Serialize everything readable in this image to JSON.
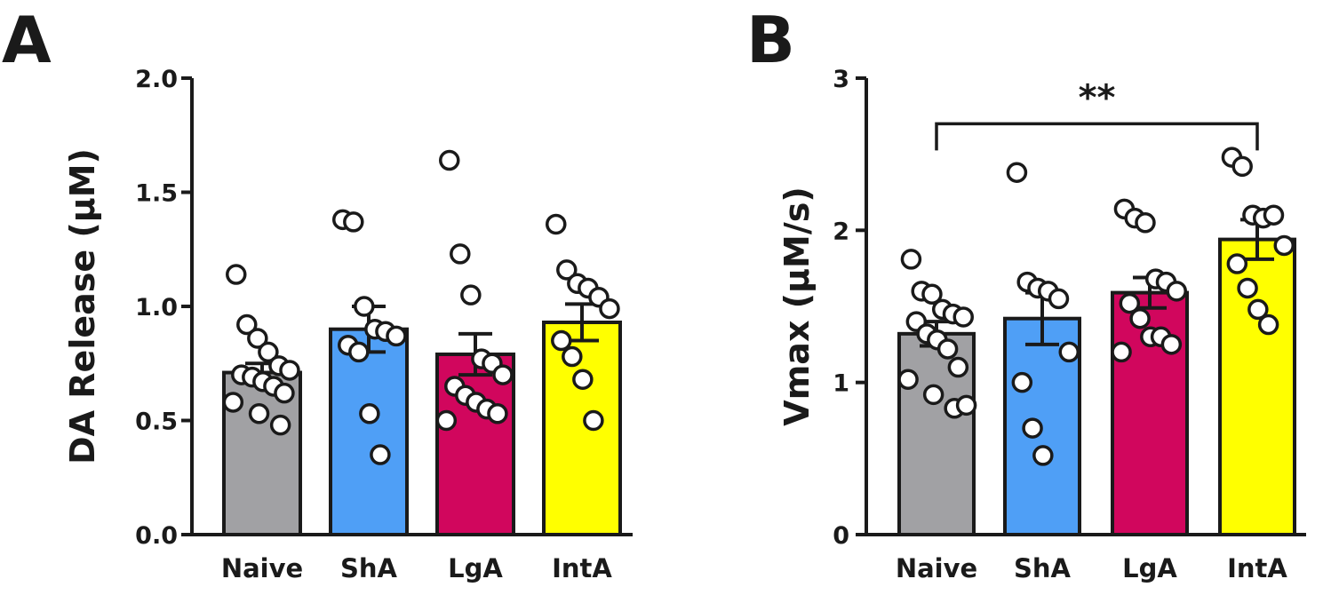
{
  "chart_data": [
    {
      "panel": "A",
      "type": "bar",
      "title": "",
      "xlabel": "",
      "ylabel": "DA Release (µM)",
      "ylim": [
        0,
        2.0
      ],
      "yticks": [
        0.0,
        0.5,
        1.0,
        1.5,
        2.0
      ],
      "ytick_labels": [
        "0.0",
        "0.5",
        "1.0",
        "1.5",
        "2.0"
      ],
      "categories": [
        "Naive",
        "ShA",
        "LgA",
        "IntA"
      ],
      "colors": [
        "#a1a1a4",
        "#4f9ff6",
        "#d1065d",
        "#ffff00"
      ],
      "values": [
        0.71,
        0.9,
        0.79,
        0.93
      ],
      "sem": [
        0.04,
        0.1,
        0.09,
        0.08
      ],
      "points": [
        [
          1.14,
          0.92,
          0.86,
          0.8,
          0.74,
          0.72,
          0.7,
          0.69,
          0.67,
          0.65,
          0.62,
          0.58,
          0.53,
          0.48
        ],
        [
          1.38,
          1.37,
          1.0,
          0.9,
          0.89,
          0.87,
          0.83,
          0.8,
          0.53,
          0.35
        ],
        [
          1.64,
          1.23,
          1.05,
          0.77,
          0.75,
          0.7,
          0.65,
          0.61,
          0.58,
          0.55,
          0.53,
          0.5
        ],
        [
          1.36,
          1.16,
          1.1,
          1.08,
          1.04,
          0.99,
          0.85,
          0.78,
          0.68,
          0.5
        ]
      ],
      "significance": []
    },
    {
      "panel": "B",
      "type": "bar",
      "title": "",
      "xlabel": "",
      "ylabel": "Vmax (µM/s)",
      "ylim": [
        0,
        3
      ],
      "yticks": [
        0,
        1,
        2,
        3
      ],
      "ytick_labels": [
        "0",
        "1",
        "2",
        "3"
      ],
      "categories": [
        "Naive",
        "ShA",
        "LgA",
        "IntA"
      ],
      "colors": [
        "#a1a1a4",
        "#4f9ff6",
        "#d1065d",
        "#ffff00"
      ],
      "values": [
        1.32,
        1.42,
        1.59,
        1.94
      ],
      "sem": [
        0.08,
        0.17,
        0.1,
        0.13
      ],
      "points": [
        [
          1.81,
          1.6,
          1.58,
          1.48,
          1.45,
          1.43,
          1.4,
          1.32,
          1.28,
          1.22,
          1.1,
          1.02,
          0.92,
          0.83,
          0.85
        ],
        [
          2.38,
          1.66,
          1.62,
          1.6,
          1.55,
          1.2,
          1.0,
          0.7,
          0.52
        ],
        [
          2.14,
          2.08,
          2.05,
          1.68,
          1.66,
          1.6,
          1.52,
          1.42,
          1.3,
          1.3,
          1.25,
          1.2
        ],
        [
          2.48,
          2.42,
          2.1,
          2.08,
          2.1,
          1.9,
          1.78,
          1.62,
          1.48,
          1.38
        ]
      ],
      "significance": [
        {
          "from": "Naive",
          "to": "IntA",
          "label": "**",
          "y": 2.7
        }
      ]
    }
  ]
}
